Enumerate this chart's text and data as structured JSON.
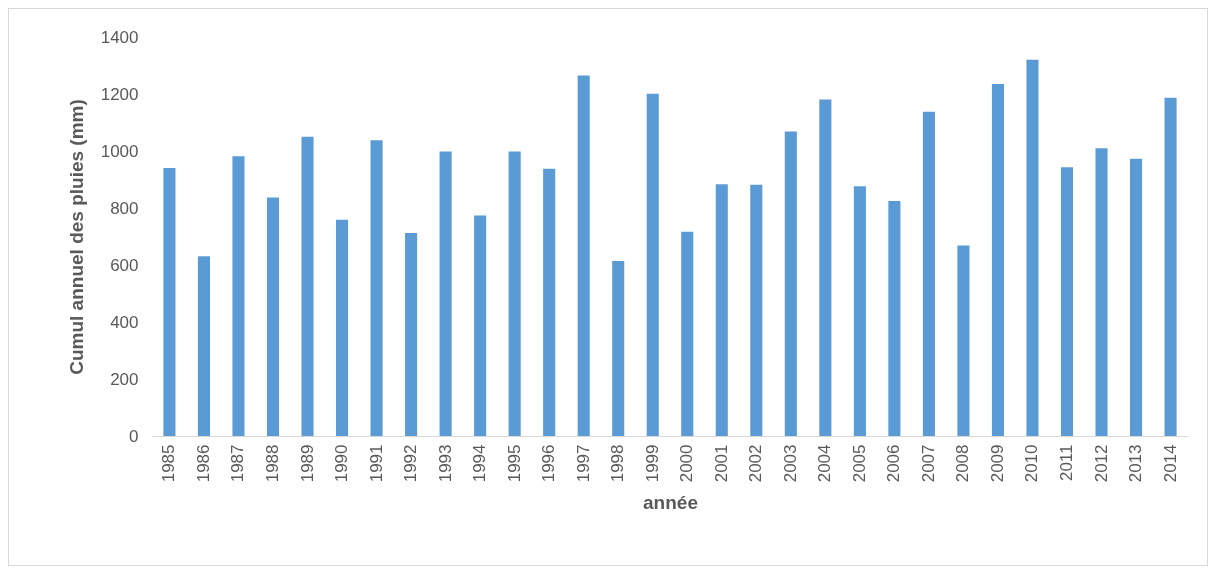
{
  "chart_data": {
    "type": "bar",
    "xlabel": "année",
    "ylabel": "Cumul annuel des pluies (mm)",
    "categories": [
      "1985",
      "1986",
      "1987",
      "1988",
      "1989",
      "1990",
      "1991",
      "1992",
      "1993",
      "1994",
      "1995",
      "1996",
      "1997",
      "1998",
      "1999",
      "2000",
      "2001",
      "2002",
      "2003",
      "2004",
      "2005",
      "2006",
      "2007",
      "2008",
      "2009",
      "2010",
      "2011",
      "2012",
      "2013",
      "2014"
    ],
    "values": [
      940,
      631,
      982,
      837,
      1050,
      759,
      1038,
      712,
      998,
      774,
      998,
      938,
      1265,
      614,
      1201,
      717,
      883,
      882,
      1068,
      1181,
      876,
      825,
      1138,
      668,
      1235,
      1320,
      943,
      1010,
      973,
      1187
    ],
    "color": "#5b9bd5",
    "ylim": [
      0,
      1400
    ],
    "yticks": [
      0,
      200,
      400,
      600,
      800,
      1000,
      1200,
      1400
    ]
  }
}
